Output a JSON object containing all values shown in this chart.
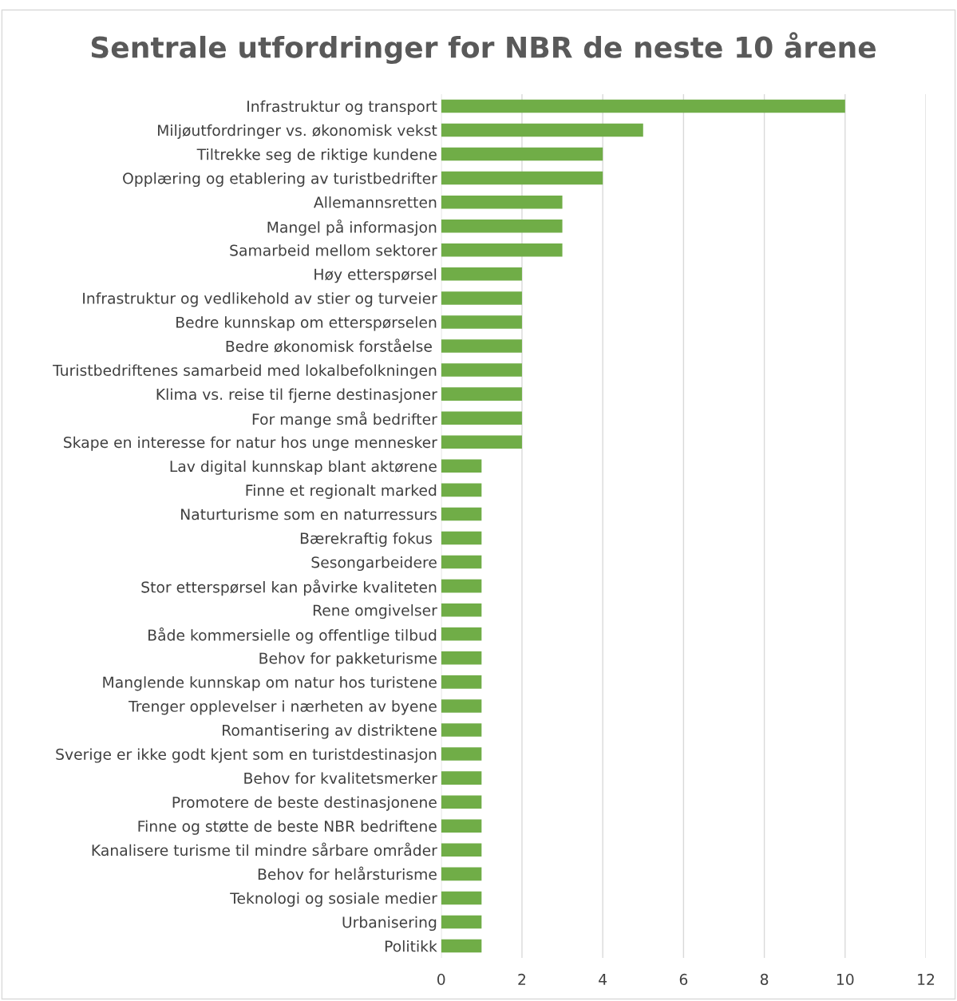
{
  "chart_data": {
    "type": "bar",
    "orientation": "horizontal",
    "title": "Sentrale utfordringer for NBR de neste 10 årene",
    "categories": [
      "Infrastruktur og transport",
      "Miljøutfordringer vs. økonomisk vekst",
      "Tiltrekke seg de riktige kundene",
      "Opplæring og etablering av turistbedrifter",
      "Allemannsretten",
      "Mangel på informasjon",
      "Samarbeid mellom sektorer",
      "Høy etterspørsel",
      "Infrastruktur og vedlikehold av stier og turveier",
      "Bedre kunnskap om etterspørselen",
      "Bedre økonomisk forståelse ",
      "Turistbedriftenes samarbeid med lokalbefolkningen",
      "Klima vs. reise til fjerne destinasjoner",
      "For mange små bedrifter",
      "Skape en interesse for natur hos unge mennesker",
      "Lav digital kunnskap blant aktørene",
      "Finne et regionalt marked",
      "Naturturisme som en naturressurs",
      "Bærekraftig fokus ",
      "Sesongarbeidere",
      "Stor etterspørsel kan påvirke kvaliteten",
      "Rene omgivelser",
      "Både kommersielle og offentlige tilbud",
      "Behov for pakketurisme",
      "Manglende kunnskap om natur hos turistene",
      "Trenger opplevelser i nærheten av byene",
      "Romantisering av distriktene",
      "Sverige er ikke godt kjent som en turistdestinasjon",
      "Behov for kvalitetsmerker",
      "Promotere de beste destinasjonene",
      "Finne og støtte de beste NBR bedriftene",
      "Kanalisere turisme til mindre sårbare områder",
      "Behov for helårsturisme",
      "Teknologi og sosiale medier",
      "Urbanisering",
      "Politikk"
    ],
    "values": [
      10,
      5,
      4,
      4,
      3,
      3,
      3,
      2,
      2,
      2,
      2,
      2,
      2,
      2,
      2,
      1,
      1,
      1,
      1,
      1,
      1,
      1,
      1,
      1,
      1,
      1,
      1,
      1,
      1,
      1,
      1,
      1,
      1,
      1,
      1,
      1
    ],
    "color": "#70ad47",
    "xlim": [
      0,
      12
    ],
    "xticks": [
      0,
      2,
      4,
      6,
      8,
      10,
      12
    ],
    "grid": "x"
  }
}
